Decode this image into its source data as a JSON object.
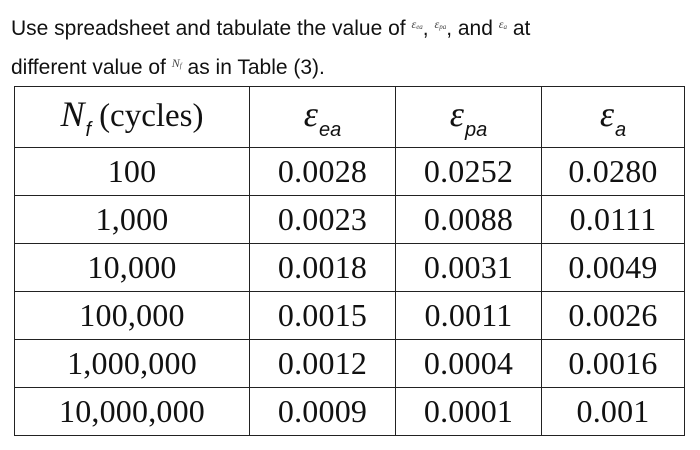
{
  "question": {
    "line1_pre": "Use spreadsheet and tabulate the value of ",
    "eps_ea_sym": "ε",
    "eps_ea_sub": "ea",
    "sep1": ", ",
    "eps_pa_sym": "ε",
    "eps_pa_sub": "pa",
    "sep2": ", and ",
    "eps_a_sym": "ε",
    "eps_a_sub": "a",
    "line1_post": " at",
    "line2_pre": "different value of ",
    "nf_sym": "N",
    "nf_sub": "f",
    "line2_post": " as in Table (3)."
  },
  "table": {
    "headers": [
      {
        "symbol": "N",
        "sub": "f",
        "text": "(cycles)"
      },
      {
        "symbol": "ε",
        "sub": "ea"
      },
      {
        "symbol": "ε",
        "sub": "pa"
      },
      {
        "symbol": "ε",
        "sub": "a"
      }
    ],
    "rows": [
      [
        "100",
        "0.0028",
        "0.0252",
        "0.0280"
      ],
      [
        "1,000",
        "0.0023",
        "0.0088",
        "0.0111"
      ],
      [
        "10,000",
        "0.0018",
        "0.0031",
        "0.0049"
      ],
      [
        "100,000",
        "0.0015",
        "0.0011",
        "0.0026"
      ],
      [
        "1,000,000",
        "0.0012",
        "0.0004",
        "0.0016"
      ],
      [
        "10,000,000",
        "0.0009",
        "0.0001",
        "0.001"
      ]
    ]
  }
}
